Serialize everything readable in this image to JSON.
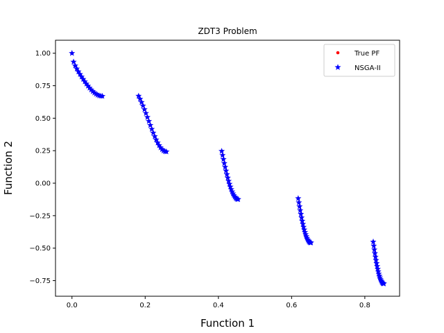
{
  "chart_data": {
    "type": "scatter",
    "title": "ZDT3 Problem",
    "xlabel": "Function 1",
    "ylabel": "Function 2",
    "xlim": [
      -0.045,
      0.895
    ],
    "ylim": [
      -0.87,
      1.1
    ],
    "xticks": [
      0.0,
      0.2,
      0.4,
      0.6,
      0.8
    ],
    "xtick_labels": [
      "0.0",
      "0.2",
      "0.4",
      "0.6",
      "0.8"
    ],
    "yticks": [
      -0.75,
      -0.5,
      -0.25,
      0.0,
      0.25,
      0.5,
      0.75,
      1.0
    ],
    "ytick_labels": [
      "−0.75",
      "−0.50",
      "−0.25",
      "0.00",
      "0.25",
      "0.50",
      "0.75",
      "1.00"
    ],
    "grid": false,
    "legend_position": "top-right",
    "segments": [
      [
        0.0,
        0.083
      ],
      [
        0.182,
        0.258
      ],
      [
        0.409,
        0.454
      ],
      [
        0.618,
        0.653
      ],
      [
        0.823,
        0.852
      ]
    ],
    "series": [
      {
        "name": "True PF",
        "marker": "circle",
        "color": "#ff0000",
        "points_per_segment": 20
      },
      {
        "name": "NSGA-II",
        "marker": "star",
        "color": "#0000ff",
        "points_per_segment": 20
      }
    ]
  }
}
